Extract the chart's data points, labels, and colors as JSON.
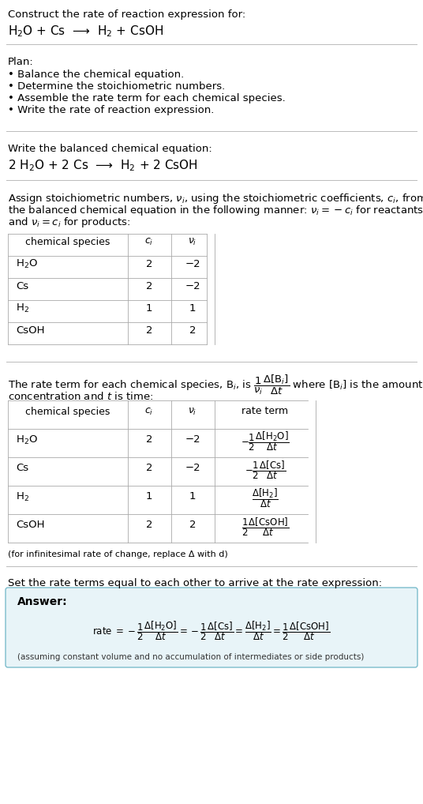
{
  "bg_color": "#ffffff",
  "title_line1": "Construct the rate of reaction expression for:",
  "reaction_unbalanced": "H$_2$O + Cs  ⟶  H$_2$ + CsOH",
  "plan_header": "Plan:",
  "plan_items": [
    "• Balance the chemical equation.",
    "• Determine the stoichiometric numbers.",
    "• Assemble the rate term for each chemical species.",
    "• Write the rate of reaction expression."
  ],
  "balanced_header": "Write the balanced chemical equation:",
  "reaction_balanced": "2 H$_2$O + 2 Cs  ⟶  H$_2$ + 2 CsOH",
  "stoich_intro_lines": [
    "Assign stoichiometric numbers, $\\nu_i$, using the stoichiometric coefficients, $c_i$, from",
    "the balanced chemical equation in the following manner: $\\nu_i = -c_i$ for reactants",
    "and $\\nu_i = c_i$ for products:"
  ],
  "table1_headers": [
    "chemical species",
    "$c_i$",
    "$\\nu_i$"
  ],
  "table1_rows": [
    [
      "H$_2$O",
      "2",
      "−2"
    ],
    [
      "Cs",
      "2",
      "−2"
    ],
    [
      "H$_2$",
      "1",
      "1"
    ],
    [
      "CsOH",
      "2",
      "2"
    ]
  ],
  "rate_intro_line1": "The rate term for each chemical species, B$_i$, is $\\dfrac{1}{\\nu_i}\\dfrac{\\Delta[\\mathrm{B}_i]}{\\Delta t}$ where [B$_i$] is the amount",
  "rate_intro_line2": "concentration and $t$ is time:",
  "table2_headers": [
    "chemical species",
    "$c_i$",
    "$\\nu_i$",
    "rate term"
  ],
  "table2_rows": [
    [
      "H$_2$O",
      "2",
      "−2",
      "$-\\dfrac{1}{2}\\dfrac{\\Delta[\\mathrm{H_2O}]}{\\Delta t}$"
    ],
    [
      "Cs",
      "2",
      "−2",
      "$-\\dfrac{1}{2}\\dfrac{\\Delta[\\mathrm{Cs}]}{\\Delta t}$"
    ],
    [
      "H$_2$",
      "1",
      "1",
      "$\\dfrac{\\Delta[\\mathrm{H_2}]}{\\Delta t}$"
    ],
    [
      "CsOH",
      "2",
      "2",
      "$\\dfrac{1}{2}\\dfrac{\\Delta[\\mathrm{CsOH}]}{\\Delta t}$"
    ]
  ],
  "infinitesimal_note": "(for infinitesimal rate of change, replace Δ with d)",
  "set_equal_text": "Set the rate terms equal to each other to arrive at the rate expression:",
  "answer_box_color": "#e8f4f8",
  "answer_box_border": "#7bbccc",
  "answer_label": "Answer:",
  "answer_equation": "rate $= -\\dfrac{1}{2}\\dfrac{\\Delta[\\mathrm{H_2O}]}{\\Delta t} = -\\dfrac{1}{2}\\dfrac{\\Delta[\\mathrm{Cs}]}{\\Delta t} = \\dfrac{\\Delta[\\mathrm{H_2}]}{\\Delta t} = \\dfrac{1}{2}\\dfrac{\\Delta[\\mathrm{CsOH}]}{\\Delta t}$",
  "answer_note": "(assuming constant volume and no accumulation of intermediates or side products)"
}
